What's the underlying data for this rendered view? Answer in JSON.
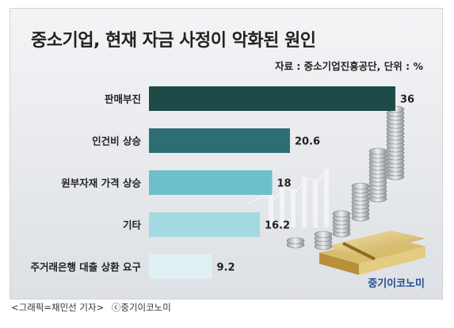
{
  "title": "중소기업, 현재 자금 사정이 악화된 원인",
  "source": "자료 : 중소기업진흥공단, 단위 : %",
  "logo": "중기이코노미",
  "caption": {
    "credit": "<그래픽=채민선 기자>",
    "copyright": "ⓒ중기이코노미"
  },
  "chart_data": {
    "type": "bar",
    "orientation": "horizontal",
    "title": "중소기업, 현재 자금 사정이 악화된 원인",
    "unit": "%",
    "xlim": [
      0,
      36
    ],
    "grid": false,
    "categories": [
      "판매부진",
      "인건비 상승",
      "원부자재 가격 상승",
      "기타",
      "주거래은행 대출 상환 요구"
    ],
    "values": [
      36,
      20.6,
      18,
      16.2,
      9.2
    ],
    "value_labels": [
      "36",
      "20.6",
      "18",
      "16.2",
      "9.2"
    ],
    "colors": [
      "#1e4a48",
      "#2d6e73",
      "#6bc0cc",
      "#a3d9e1",
      "#dff1f3"
    ]
  }
}
